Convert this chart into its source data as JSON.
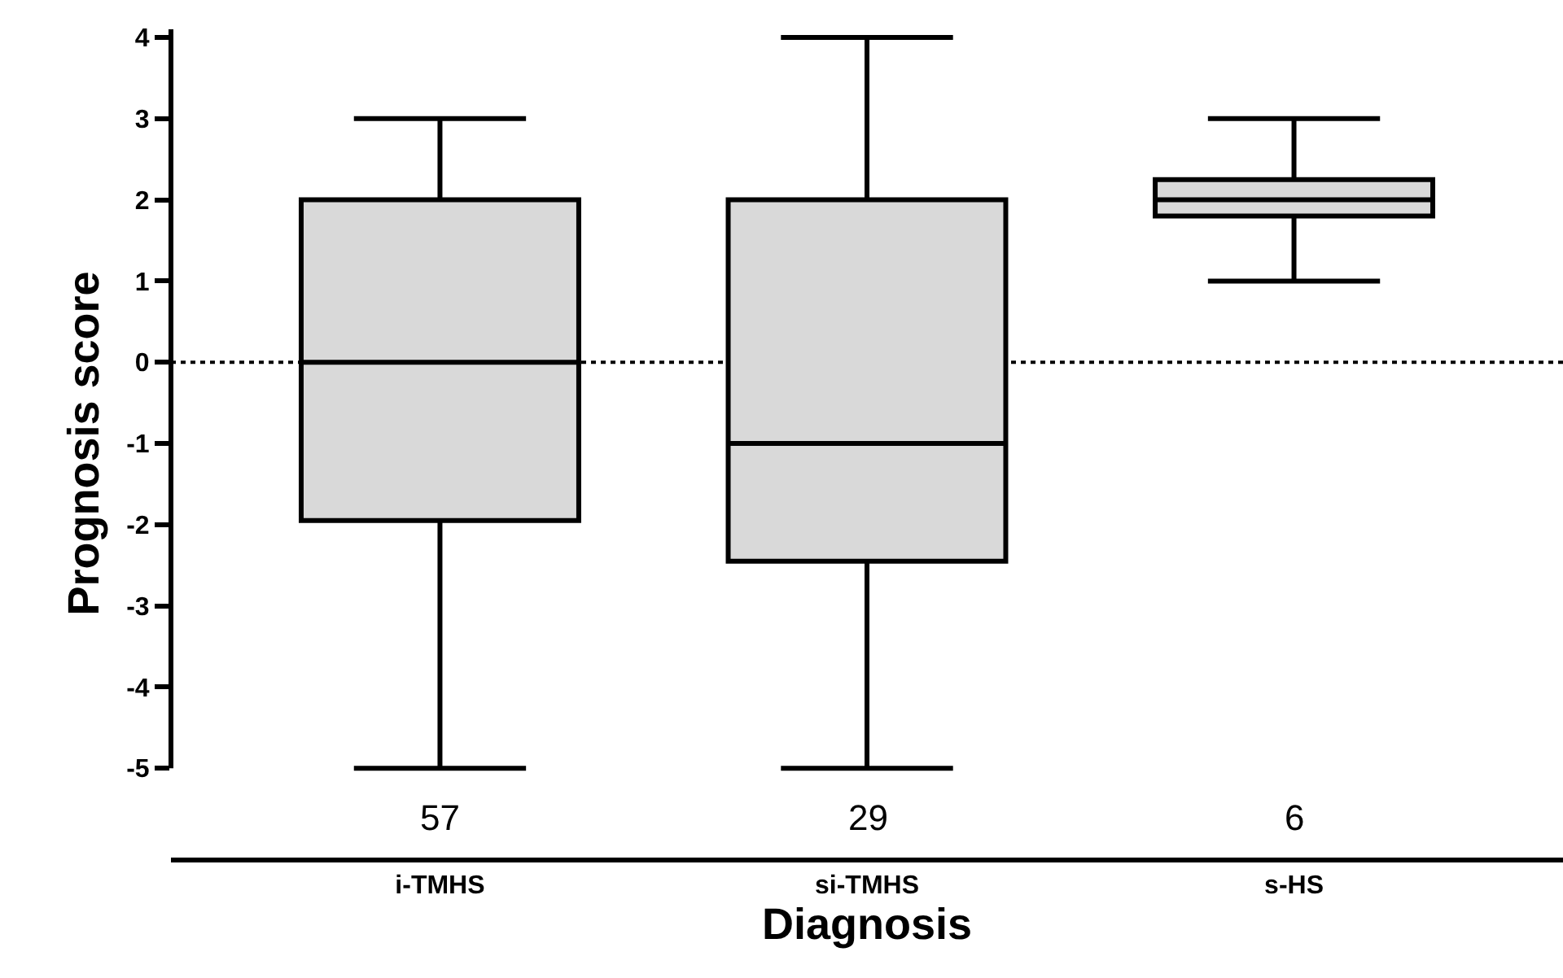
{
  "chart_data": {
    "type": "box",
    "xlabel": "Diagnosis",
    "ylabel": "Prognosis score",
    "categories": [
      "i-TMHS",
      "si-TMHS",
      "s-HS"
    ],
    "boxes": [
      {
        "low": -5,
        "q1": -1.95,
        "median": 0,
        "q3": 2,
        "high": 3
      },
      {
        "low": -5,
        "q1": -2.45,
        "median": -1,
        "q3": 2,
        "high": 4
      },
      {
        "low": 1,
        "q1": 1.8,
        "median": 2,
        "q3": 2.25,
        "high": 3
      }
    ],
    "color": "#d9d9d9",
    "ylim": [
      -6.1,
      4.1
    ],
    "yticks": [
      -5,
      -4,
      -3,
      -2,
      -1,
      0,
      1,
      2,
      3,
      4
    ],
    "ref_lines": [
      {
        "axis": "y",
        "value": 0,
        "line_style": "dotted",
        "color": "#000000"
      }
    ],
    "annotations": [
      "57",
      "29",
      "6"
    ],
    "grid": false
  }
}
